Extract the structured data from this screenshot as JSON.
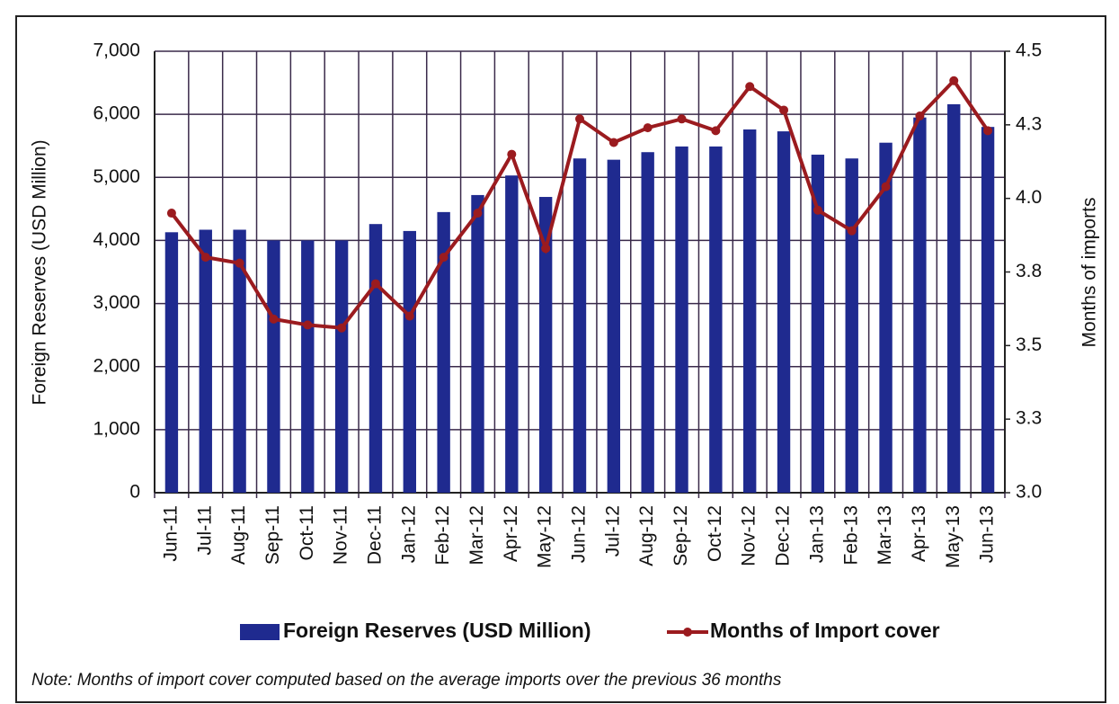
{
  "chart_data": {
    "type": "bar_line",
    "y_label": "Foreign Reserves (USD Million)",
    "y2_label": "Months of imports",
    "note": "Note: Months of import cover computed based on the average imports over the previous 36 months",
    "categories": [
      "Jun-11",
      "Jul-11",
      "Aug-11",
      "Sep-11",
      "Oct-11",
      "Nov-11",
      "Dec-11",
      "Jan-12",
      "Feb-12",
      "Mar-12",
      "Apr-12",
      "May-12",
      "Jun-12",
      "Jul-12",
      "Aug-12",
      "Sep-12",
      "Oct-12",
      "Nov-12",
      "Dec-12",
      "Jan-13",
      "Feb-13",
      "Mar-13",
      "Apr-13",
      "May-13",
      "Jun-13"
    ],
    "series": [
      {
        "name": "Foreign Reserves (USD Million)",
        "type": "bar",
        "color": "#1f2a8f",
        "values": [
          4130,
          4170,
          4170,
          4000,
          4000,
          4000,
          4260,
          4150,
          4450,
          4720,
          5030,
          4690,
          5300,
          5280,
          5400,
          5490,
          5490,
          5760,
          5730,
          5360,
          5300,
          5550,
          5950,
          6160,
          5800
        ]
      },
      {
        "name": "Months of Import cover",
        "type": "line",
        "axis": "y2",
        "color": "#9b1b1f",
        "values": [
          3.95,
          3.8,
          3.78,
          3.59,
          3.57,
          3.56,
          3.71,
          3.6,
          3.8,
          3.95,
          4.15,
          3.83,
          4.27,
          4.19,
          4.24,
          4.27,
          4.23,
          4.38,
          4.3,
          3.96,
          3.89,
          4.04,
          4.28,
          4.4,
          4.23
        ]
      }
    ],
    "ylim": [
      0,
      7000
    ],
    "yticks": [
      0,
      {
        "value": 1000,
        "label": "1,000"
      },
      {
        "value": 2000,
        "label": "2,000"
      },
      {
        "value": 3000,
        "label": "3,000"
      },
      {
        "value": 4000,
        "label": "4,000"
      },
      {
        "value": 5000,
        "label": "5,000"
      },
      {
        "value": 6000,
        "label": "6,000"
      },
      {
        "value": 7000,
        "label": "7,000"
      }
    ],
    "y2lim": [
      3,
      4.5
    ],
    "y2ticks": [
      {
        "value": 3,
        "label": "3.0"
      },
      {
        "value": 3.25,
        "label": "3.3"
      },
      3.5,
      {
        "value": 3.75,
        "label": "3.8"
      },
      {
        "value": 4,
        "label": "4.0"
      },
      {
        "value": 4.25,
        "label": "4.3"
      },
      4.5
    ],
    "grid": true
  }
}
